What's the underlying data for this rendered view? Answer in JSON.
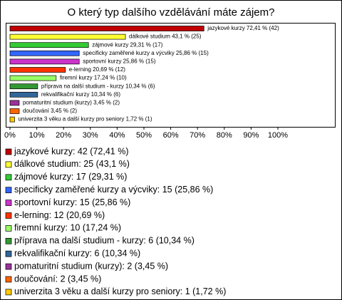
{
  "chart_data": {
    "type": "bar",
    "orientation": "horizontal",
    "title": "O který typ dalšího vzdělávání máte zájem?",
    "categories": [
      "jazykové kurzy",
      "dálkové studium",
      "zájmové kurzy",
      "specificky zaměřené kurzy a výcviky",
      "sportovní kurzy",
      "e-lerning",
      "firemní kurzy",
      "příprava na další studium - kurzy",
      "rekvalifikační kurzy",
      "pomaturitní studium (kurzy)",
      "doučování",
      "univerzita 3 věku a další kurzy pro seniory"
    ],
    "values": [
      72.41,
      43.1,
      29.31,
      25.86,
      25.86,
      20.69,
      17.24,
      10.34,
      10.34,
      3.45,
      3.45,
      1.72
    ],
    "value_labels": [
      "jazykové kurzy 72,41 % (42)",
      "dálkové studium 43,1 % (25)",
      "zájmové kurzy 29,31 % (17)",
      "specificky zaměřené kurzy a výcviky 25,86 % (15)",
      "sportovní kurzy 25,86 % (15)",
      "e-lerning 20,69 % (12)",
      "firemní kurzy 17,24 % (10)",
      "příprava na další studium - kurzy 10,34 % (6)",
      "rekvalifikační kurzy 10,34 % (6)",
      "pomaturitní studium (kurzy) 3,45 % (2)",
      "doučování 3,45 % (2)",
      "univerzita 3 věku a další kurzy pro seniory 1,72 % (1)"
    ],
    "legend_labels": [
      "jazykové kurzy: 42 (72,41 %)",
      "dálkové studium: 25 (43,1 %)",
      "zájmové kurzy: 17 (29,31 %)",
      "specificky zaměřené kurzy a výcviky: 15 (25,86 %)",
      "sportovní kurzy: 15 (25,86 %)",
      "e-lerning: 12 (20,69 %)",
      "firemní kurzy: 10 (17,24 %)",
      "příprava na další studium - kurzy: 6 (10,34 %)",
      "rekvalifikační kurzy: 6 (10,34 %)",
      "pomaturitní studium (kurzy): 2 (3,45 %)",
      "doučování: 2 (3,45 %)",
      "univerzita 3 věku a další kurzy pro seniory: 1 (1,72 %)"
    ],
    "colors": [
      "#c00000",
      "#ffff33",
      "#33cc33",
      "#3366ff",
      "#cc33cc",
      "#ff3300",
      "#99ff66",
      "#339933",
      "#336699",
      "#993399",
      "#ff6600",
      "#ffcc00"
    ],
    "xlim": [
      0,
      100
    ],
    "xticks": [
      {
        "value": 0,
        "label": "0%"
      },
      {
        "value": 10,
        "label": "10%"
      },
      {
        "value": 20,
        "label": "20%"
      },
      {
        "value": 30,
        "label": "30%"
      },
      {
        "value": 40,
        "label": "40%"
      },
      {
        "value": 50,
        "label": "50%"
      },
      {
        "value": 60,
        "label": "60%"
      },
      {
        "value": 70,
        "label": "70%"
      },
      {
        "value": 80,
        "label": "80%"
      },
      {
        "value": 90,
        "label": "90%"
      },
      {
        "value": 100,
        "label": "100%"
      }
    ]
  }
}
